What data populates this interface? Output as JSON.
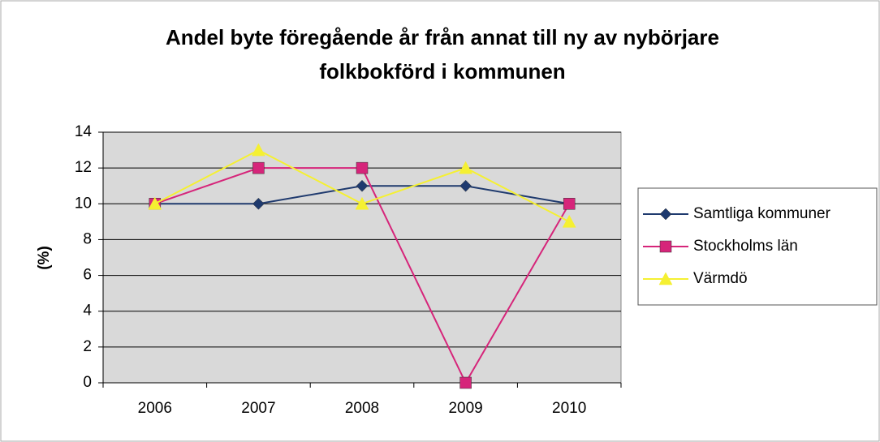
{
  "chart_data": {
    "type": "line",
    "title": [
      "Andel byte föregående år från annat till ny av nybörjare",
      "folkbokförd i kommunen"
    ],
    "y_label": "(%)",
    "categories": [
      "2006",
      "2007",
      "2008",
      "2009",
      "2010"
    ],
    "series": [
      {
        "name": "Samtliga kommuner",
        "color": "#1f3a6e",
        "marker": "diamond",
        "values": [
          10,
          10,
          11,
          11,
          10
        ]
      },
      {
        "name": "Stockholms län",
        "color": "#d6257a",
        "marker": "square",
        "values": [
          10,
          12,
          12,
          0,
          10
        ]
      },
      {
        "name": "Värmdö",
        "color": "#f5f032",
        "marker": "triangle",
        "values": [
          10,
          13,
          10,
          12,
          9
        ]
      }
    ],
    "ylim": [
      0,
      14
    ],
    "yticks": [
      0,
      2,
      4,
      6,
      8,
      10,
      12,
      14
    ],
    "grid": true,
    "legend": "right"
  }
}
